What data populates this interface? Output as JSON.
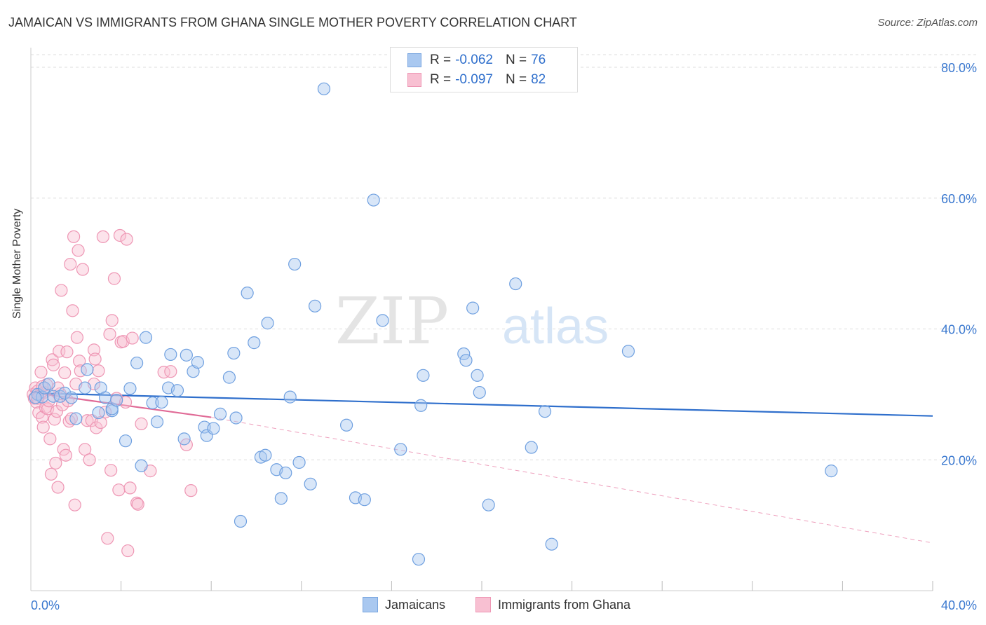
{
  "header": {
    "title": "JAMAICAN VS IMMIGRANTS FROM GHANA SINGLE MOTHER POVERTY CORRELATION CHART",
    "source": "Source: ZipAtlas.com"
  },
  "watermark": {
    "part1": "ZIP",
    "part2": "atlas"
  },
  "legend": {
    "rows": [
      {
        "r_label": "R =",
        "r_value": "-0.062",
        "n_label": "N =",
        "n_value": "76",
        "color": "#a9c8f0",
        "stroke": "#7aa6e0"
      },
      {
        "r_label": "R =",
        "r_value": "-0.097",
        "n_label": "N =",
        "n_value": "82",
        "color": "#f8c0d2",
        "stroke": "#ee96b4"
      }
    ]
  },
  "bottom_legend": {
    "items": [
      {
        "label": "Jamaicans",
        "color": "#a9c8f0",
        "stroke": "#7aa6e0"
      },
      {
        "label": "Immigrants from Ghana",
        "color": "#f8c0d2",
        "stroke": "#ee96b4"
      }
    ]
  },
  "chart_data": {
    "type": "scatter",
    "title": "JAMAICAN VS IMMIGRANTS FROM GHANA SINGLE MOTHER POVERTY CORRELATION CHART",
    "xlabel": "",
    "ylabel": "Single Mother Poverty",
    "xlim": [
      0,
      40
    ],
    "ylim": [
      0,
      83
    ],
    "x_tick_labels": [
      "0.0%",
      "40.0%"
    ],
    "y_ticks": [
      20,
      40,
      60,
      80
    ],
    "y_tick_labels": [
      "20.0%",
      "40.0%",
      "60.0%",
      "80.0%"
    ],
    "grid": true,
    "legend_position": "top-center",
    "series": [
      {
        "name": "Jamaicans",
        "color": "#6fa0e0",
        "trend": {
          "x": [
            0,
            40
          ],
          "y": [
            30.2,
            26.7
          ],
          "color": "#2f6fcc"
        },
        "points": [
          [
            0.3,
            30
          ],
          [
            0.5,
            29.6
          ],
          [
            0.6,
            31
          ],
          [
            0.8,
            31.6
          ],
          [
            1,
            29.7
          ],
          [
            1.3,
            29.7
          ],
          [
            1.5,
            30.2
          ],
          [
            1.8,
            29.5
          ],
          [
            2,
            26.3
          ],
          [
            2.4,
            31
          ],
          [
            2.5,
            33.8
          ],
          [
            3.1,
            31
          ],
          [
            3,
            27.2
          ],
          [
            3.3,
            29.5
          ],
          [
            3.6,
            27.5
          ],
          [
            3.6,
            27.8
          ],
          [
            3.8,
            29.1
          ],
          [
            4.2,
            22.9
          ],
          [
            4.4,
            30.9
          ],
          [
            4.7,
            34.8
          ],
          [
            4.9,
            19.1
          ],
          [
            5.1,
            38.7
          ],
          [
            5.4,
            28.7
          ],
          [
            5.6,
            25.8
          ],
          [
            5.8,
            28.8
          ],
          [
            6.1,
            31
          ],
          [
            6.2,
            36.1
          ],
          [
            6.5,
            30.6
          ],
          [
            6.8,
            23.2
          ],
          [
            6.9,
            36
          ],
          [
            7.2,
            33.5
          ],
          [
            7.4,
            34.9
          ],
          [
            7.7,
            25
          ],
          [
            7.8,
            23.7
          ],
          [
            8.1,
            24.8
          ],
          [
            8.4,
            27
          ],
          [
            8.8,
            32.6
          ],
          [
            9,
            36.3
          ],
          [
            9.1,
            26.4
          ],
          [
            9.3,
            10.6
          ],
          [
            9.6,
            45.5
          ],
          [
            9.9,
            37.9
          ],
          [
            10.2,
            20.4
          ],
          [
            10.4,
            20.7
          ],
          [
            10.5,
            40.9
          ],
          [
            10.9,
            18.5
          ],
          [
            11.1,
            14.1
          ],
          [
            11.3,
            18
          ],
          [
            11.5,
            29.6
          ],
          [
            11.7,
            49.9
          ],
          [
            11.9,
            19.6
          ],
          [
            12.4,
            16.3
          ],
          [
            12.6,
            43.5
          ],
          [
            13,
            76.7
          ],
          [
            14,
            25.3
          ],
          [
            14.4,
            14.2
          ],
          [
            14.8,
            13.9
          ],
          [
            15.2,
            59.7
          ],
          [
            15.6,
            41.3
          ],
          [
            16.4,
            21.6
          ],
          [
            17.2,
            4.8
          ],
          [
            17.3,
            28.3
          ],
          [
            17.4,
            32.9
          ],
          [
            19.2,
            36.2
          ],
          [
            19.3,
            35.2
          ],
          [
            19.6,
            43.2
          ],
          [
            19.9,
            30.3
          ],
          [
            19.8,
            32.9
          ],
          [
            20.3,
            13.1
          ],
          [
            21.5,
            46.9
          ],
          [
            22.2,
            21.9
          ],
          [
            22.8,
            27.4
          ],
          [
            23.1,
            7.1
          ],
          [
            26.5,
            36.6
          ],
          [
            35.5,
            18.3
          ],
          [
            0.2,
            29.5
          ]
        ]
      },
      {
        "name": "Immigrants from Ghana",
        "color": "#ee96b4",
        "trend": {
          "x": [
            0,
            8
          ],
          "y": [
            30.3,
            26.5
          ],
          "color": "#e06a96"
        },
        "trend_extension": {
          "x": [
            8,
            40
          ],
          "y": [
            26.5,
            7.3
          ]
        },
        "points": [
          [
            0.1,
            30
          ],
          [
            0.15,
            29.4
          ],
          [
            0.2,
            31
          ],
          [
            0.25,
            28.8
          ],
          [
            0.3,
            30.5
          ],
          [
            0.35,
            27.2
          ],
          [
            0.4,
            29.9
          ],
          [
            0.45,
            33.4
          ],
          [
            0.5,
            26.5
          ],
          [
            0.55,
            25
          ],
          [
            0.6,
            30.3
          ],
          [
            0.65,
            28
          ],
          [
            0.7,
            31.5
          ],
          [
            0.75,
            27.8
          ],
          [
            0.8,
            29
          ],
          [
            0.85,
            23.2
          ],
          [
            0.9,
            17.8
          ],
          [
            0.95,
            35.3
          ],
          [
            1,
            34.5
          ],
          [
            1.05,
            26.2
          ],
          [
            1.1,
            19.5
          ],
          [
            1.15,
            27.4
          ],
          [
            1.2,
            15.8
          ],
          [
            1.25,
            36.6
          ],
          [
            1.3,
            30.1
          ],
          [
            1.35,
            45.9
          ],
          [
            1.4,
            28.4
          ],
          [
            1.45,
            21.6
          ],
          [
            1.5,
            33.3
          ],
          [
            1.55,
            20.7
          ],
          [
            1.6,
            36.5
          ],
          [
            1.65,
            29
          ],
          [
            1.7,
            25.9
          ],
          [
            1.75,
            49.9
          ],
          [
            1.8,
            26.3
          ],
          [
            1.85,
            42.8
          ],
          [
            1.9,
            54.1
          ],
          [
            1.95,
            13.1
          ],
          [
            2,
            31.6
          ],
          [
            2.05,
            38.7
          ],
          [
            2.1,
            52
          ],
          [
            2.15,
            35.1
          ],
          [
            2.2,
            33.6
          ],
          [
            2.3,
            49.1
          ],
          [
            2.4,
            21.6
          ],
          [
            2.5,
            26
          ],
          [
            2.6,
            20
          ],
          [
            2.7,
            26
          ],
          [
            2.8,
            36.8
          ],
          [
            2.85,
            35.4
          ],
          [
            2.9,
            24.9
          ],
          [
            3,
            33.6
          ],
          [
            3.1,
            25.7
          ],
          [
            3.2,
            54.1
          ],
          [
            3.3,
            27.3
          ],
          [
            3.4,
            8
          ],
          [
            3.5,
            39.2
          ],
          [
            3.55,
            18.4
          ],
          [
            3.6,
            41.3
          ],
          [
            3.7,
            47.7
          ],
          [
            3.8,
            29.4
          ],
          [
            3.9,
            15.4
          ],
          [
            3.95,
            54.3
          ],
          [
            4,
            38
          ],
          [
            4.1,
            38.1
          ],
          [
            4.2,
            28.8
          ],
          [
            4.3,
            6.1
          ],
          [
            4.25,
            53.7
          ],
          [
            4.4,
            15.7
          ],
          [
            4.5,
            38.6
          ],
          [
            4.7,
            13.4
          ],
          [
            4.75,
            13.2
          ],
          [
            4.9,
            25.5
          ],
          [
            5.3,
            18.3
          ],
          [
            5.9,
            33.4
          ],
          [
            6.2,
            33.5
          ],
          [
            6.9,
            22.3
          ],
          [
            7.1,
            15.3
          ],
          [
            0.3,
            29.4
          ],
          [
            0.5,
            31.2
          ],
          [
            1.2,
            31
          ],
          [
            2.8,
            31.6
          ]
        ]
      }
    ]
  }
}
